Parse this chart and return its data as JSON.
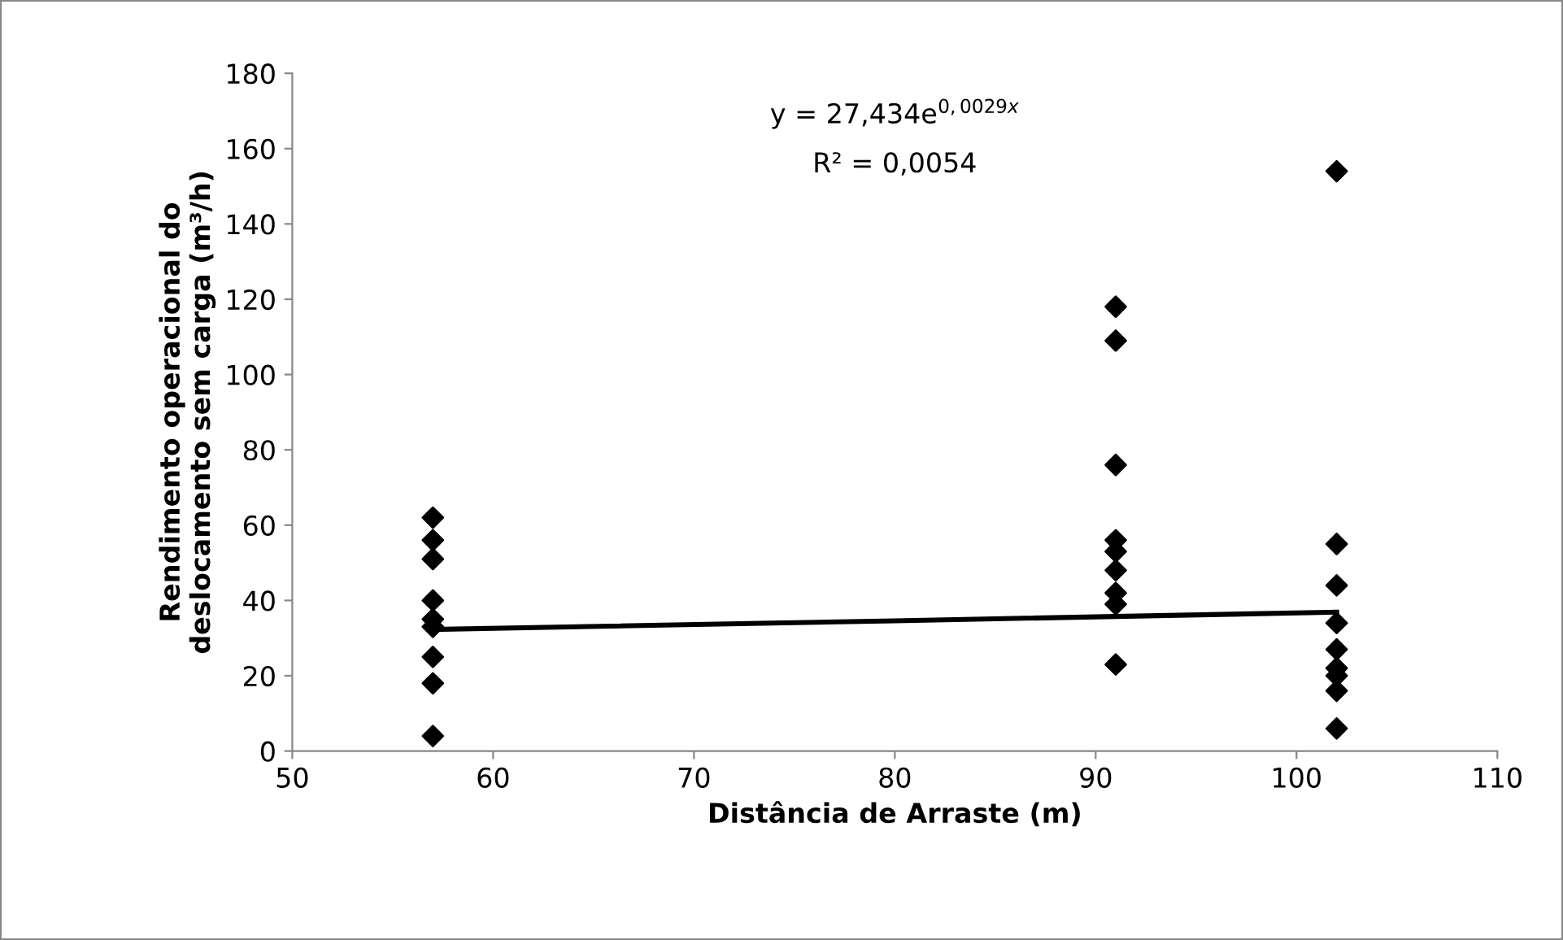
{
  "chart_data": {
    "type": "scatter",
    "xlabel": "Distância de Arraste (m)",
    "ylabel": "Rendimento operacional do\ndeslocamento sem carga (m³/h)",
    "xlim": [
      50,
      110
    ],
    "xticks": [
      50,
      60,
      70,
      80,
      90,
      100,
      110
    ],
    "ylim": [
      0,
      180
    ],
    "yticks": [
      0,
      20,
      40,
      60,
      80,
      100,
      120,
      140,
      160,
      180
    ],
    "grid": false,
    "legend": false,
    "marker": "diamond",
    "series": [
      {
        "color": "#000000",
        "x": [
          57,
          57,
          57,
          57,
          57,
          57,
          57,
          57,
          57,
          91,
          91,
          91,
          91,
          91,
          91,
          91,
          91,
          91,
          102,
          102,
          102,
          102,
          102,
          102,
          102,
          102,
          102
        ],
        "values": [
          62,
          56,
          51,
          40,
          35,
          33,
          25,
          18,
          4,
          118,
          109,
          76,
          56,
          53,
          48,
          42,
          39,
          23,
          154,
          55,
          44,
          34,
          27,
          22,
          20,
          16,
          6
        ]
      },
      {
        "type": "line",
        "color": "#000000",
        "x": [
          57,
          80,
          102
        ],
        "values": [
          32.3,
          34.6,
          36.9
        ],
        "marker": "none",
        "line_style": "solid"
      }
    ],
    "annotations": [
      "y = 27,434e$^{0,0029x}$",
      "R² = 0,0054"
    ]
  }
}
